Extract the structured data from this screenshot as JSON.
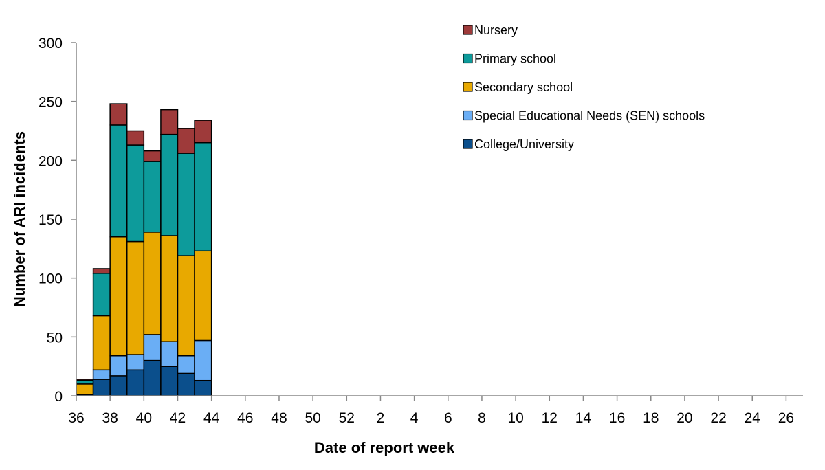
{
  "chart_data": {
    "type": "bar",
    "stacked": true,
    "title": "",
    "xlabel": "Date of report week",
    "ylabel": "Number of ARI incidents",
    "ylim": [
      0,
      300
    ],
    "yticks": [
      0,
      50,
      100,
      150,
      200,
      250,
      300
    ],
    "grid": false,
    "legend_position": "top-right",
    "categories": [
      "36",
      "37",
      "38",
      "39",
      "40",
      "41",
      "42",
      "43",
      "44",
      "45",
      "46",
      "47",
      "48",
      "49",
      "50",
      "51",
      "52",
      "1",
      "2",
      "3",
      "4",
      "5",
      "6",
      "7",
      "8",
      "9",
      "10",
      "11",
      "12",
      "13",
      "14",
      "15",
      "16",
      "17",
      "18",
      "19",
      "20",
      "21",
      "22",
      "23",
      "24",
      "25",
      "26"
    ],
    "xtick_labels": [
      "36",
      "38",
      "40",
      "42",
      "44",
      "46",
      "48",
      "50",
      "52",
      "2",
      "4",
      "6",
      "8",
      "10",
      "12",
      "14",
      "16",
      "18",
      "20",
      "22",
      "24",
      "26"
    ],
    "series": [
      {
        "name": "College/University",
        "color": "#0b4f8c",
        "values": [
          1,
          14,
          17,
          22,
          30,
          25,
          19,
          13,
          0,
          0,
          0,
          0,
          0,
          0,
          0,
          0,
          0,
          0,
          0,
          0,
          0,
          0,
          0,
          0,
          0,
          0,
          0,
          0,
          0,
          0,
          0,
          0,
          0,
          0,
          0,
          0,
          0,
          0,
          0,
          0,
          0,
          0,
          0
        ]
      },
      {
        "name": "Special Educational Needs (SEN) schools",
        "color": "#6aaef5",
        "values": [
          0,
          8,
          17,
          13,
          22,
          21,
          15,
          34,
          0,
          0,
          0,
          0,
          0,
          0,
          0,
          0,
          0,
          0,
          0,
          0,
          0,
          0,
          0,
          0,
          0,
          0,
          0,
          0,
          0,
          0,
          0,
          0,
          0,
          0,
          0,
          0,
          0,
          0,
          0,
          0,
          0,
          0,
          0
        ]
      },
      {
        "name": "Secondary school",
        "color": "#e8a900",
        "values": [
          9,
          46,
          101,
          96,
          87,
          90,
          85,
          76,
          0,
          0,
          0,
          0,
          0,
          0,
          0,
          0,
          0,
          0,
          0,
          0,
          0,
          0,
          0,
          0,
          0,
          0,
          0,
          0,
          0,
          0,
          0,
          0,
          0,
          0,
          0,
          0,
          0,
          0,
          0,
          0,
          0,
          0,
          0
        ]
      },
      {
        "name": "Primary school",
        "color": "#0d9b9b",
        "values": [
          3,
          36,
          95,
          82,
          60,
          86,
          87,
          92,
          0,
          0,
          0,
          0,
          0,
          0,
          0,
          0,
          0,
          0,
          0,
          0,
          0,
          0,
          0,
          0,
          0,
          0,
          0,
          0,
          0,
          0,
          0,
          0,
          0,
          0,
          0,
          0,
          0,
          0,
          0,
          0,
          0,
          0,
          0
        ]
      },
      {
        "name": "Nursery",
        "color": "#9e3a3a",
        "values": [
          1,
          4,
          18,
          12,
          9,
          21,
          21,
          19,
          0,
          0,
          0,
          0,
          0,
          0,
          0,
          0,
          0,
          0,
          0,
          0,
          0,
          0,
          0,
          0,
          0,
          0,
          0,
          0,
          0,
          0,
          0,
          0,
          0,
          0,
          0,
          0,
          0,
          0,
          0,
          0,
          0,
          0,
          0
        ]
      }
    ],
    "legend_order": [
      "Nursery",
      "Primary school",
      "Secondary school",
      "Special Educational Needs (SEN) schools",
      "College/University"
    ]
  }
}
